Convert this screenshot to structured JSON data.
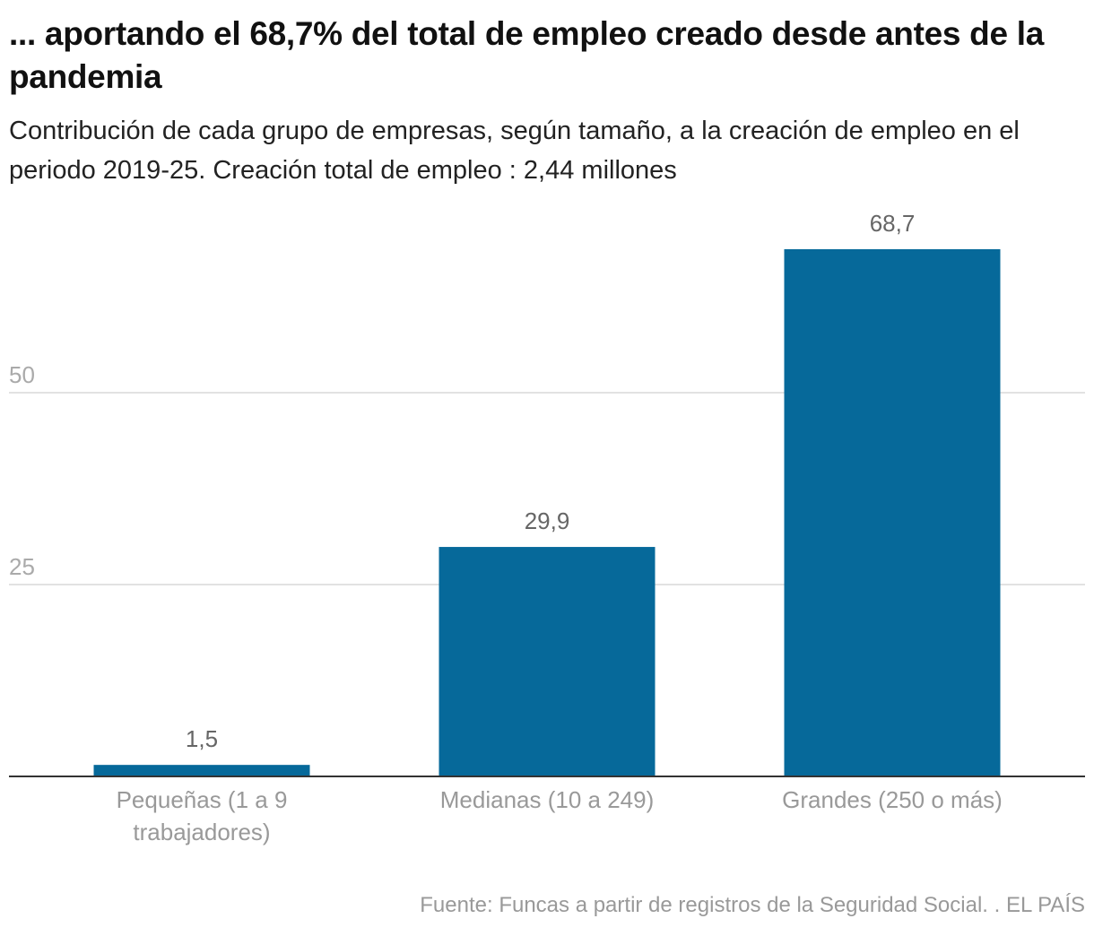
{
  "chart_data": {
    "type": "bar",
    "title": "... aportando el 68,7% del total de empleo creado desde antes de la pandemia",
    "subtitle": "Contribución de cada grupo de empresas, según tamaño, a la creación de empleo en el periodo 2019-25. Creación total de empleo : 2,44 millones",
    "categories": [
      [
        "Pequeñas (1 a 9",
        "trabajadores)"
      ],
      [
        "Medianas (10 a 249)"
      ],
      [
        "Grandes (250 o más)"
      ]
    ],
    "values": [
      1.5,
      29.9,
      68.7
    ],
    "value_labels": [
      "1,5",
      "29,9",
      "68,7"
    ],
    "yticks": [
      25,
      50
    ],
    "ylim": [
      0,
      75
    ],
    "grid": true,
    "bar_color": "#06699a",
    "source": "Fuente: Funcas a partir de registros de la Seguridad Social. . EL PAÍS"
  }
}
